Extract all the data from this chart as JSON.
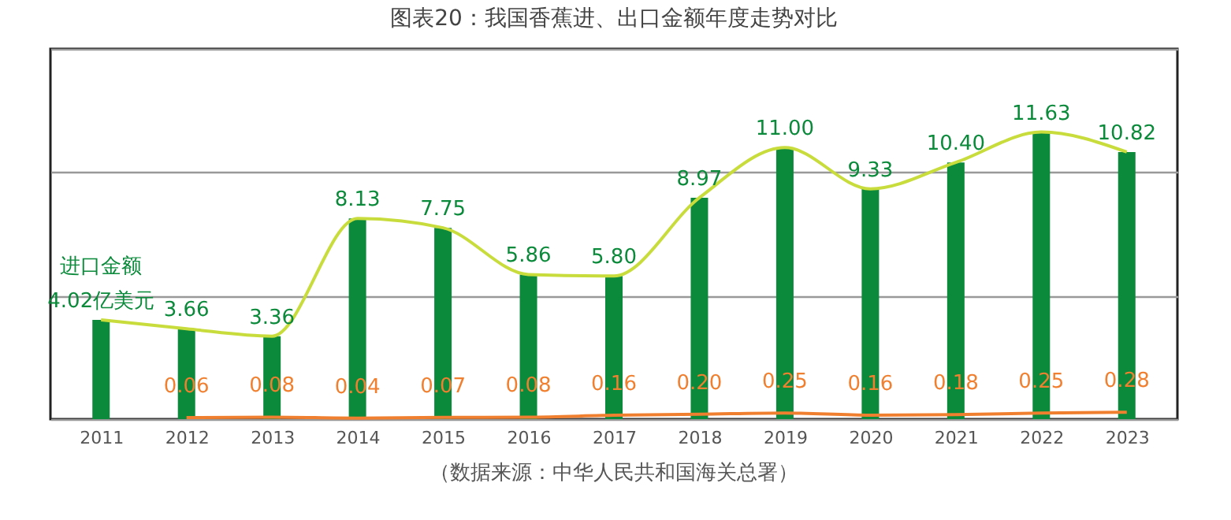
{
  "chart_data": {
    "type": "bar",
    "title": "图表20：我国香蕉进、出口金额年度走势对比",
    "categories": [
      "2011",
      "2012",
      "2013",
      "2014",
      "2015",
      "2016",
      "2017",
      "2018",
      "2019",
      "2020",
      "2021",
      "2022",
      "2023"
    ],
    "series": [
      {
        "name": "进口金额",
        "color": "#0a8a3a",
        "values": [
          4.02,
          3.66,
          3.36,
          8.13,
          7.75,
          5.86,
          5.8,
          8.97,
          11.0,
          9.33,
          10.4,
          11.63,
          10.82
        ],
        "value_labels": [
          "4.02亿美元",
          "3.66",
          "3.36",
          "8.13",
          "7.75",
          "5.86",
          "5.80",
          "8.97",
          "11.00",
          "9.33",
          "10.40",
          "11.63",
          "10.82"
        ]
      },
      {
        "type": "line",
        "color": "#c8dc3c",
        "values": [
          4.02,
          3.66,
          3.36,
          8.13,
          7.75,
          5.86,
          5.8,
          8.97,
          11.0,
          9.33,
          10.4,
          11.63,
          10.82
        ]
      },
      {
        "type": "line",
        "color": "#f08030",
        "values": [
          null,
          0.06,
          0.08,
          0.04,
          0.07,
          0.08,
          0.16,
          0.2,
          0.25,
          0.16,
          0.18,
          0.25,
          0.28
        ],
        "value_labels": [
          null,
          "0.06",
          "0.08",
          "0.04",
          "0.07",
          "0.08",
          "0.16",
          "0.20",
          "0.25",
          "0.16",
          "0.18",
          "0.25",
          "0.28"
        ]
      }
    ],
    "ylim": [
      0,
      15
    ],
    "yticks": [
      {
        "value": 0,
        "label": null
      },
      {
        "value": 5,
        "label": null
      },
      {
        "value": 10,
        "label": null
      },
      {
        "value": 15,
        "label": null
      }
    ],
    "tick_labels": "x",
    "grid": "y",
    "annotations": [
      "（数据来源：中华人民共和国海关总署）"
    ]
  }
}
